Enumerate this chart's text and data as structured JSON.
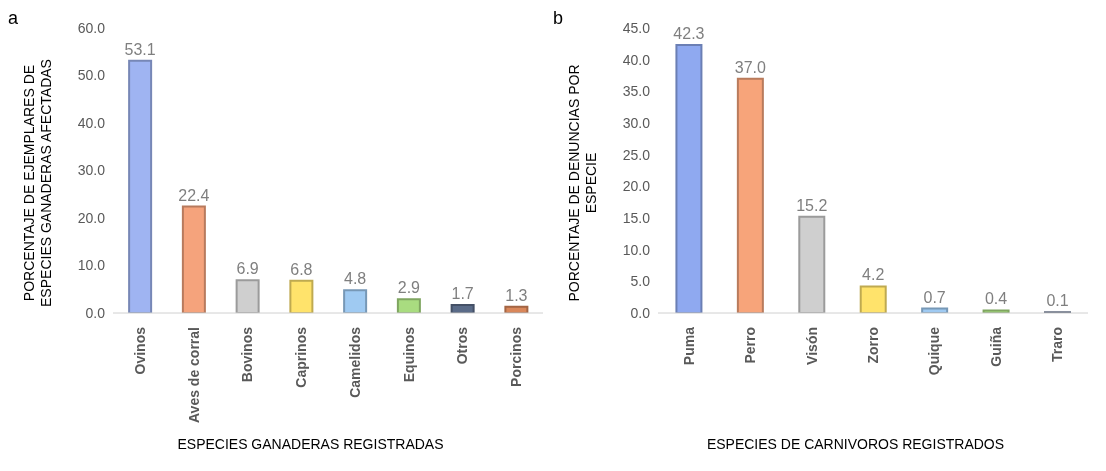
{
  "chart_data": [
    {
      "type": "bar",
      "title": "a",
      "xlabel": "ESPECIES GANADERAS REGISTRADAS",
      "ylabel": "PORCENTAJE DE EJEMPLARES DE ESPECIES GANADERAS AFECTADAS",
      "categories": [
        "Ovinos",
        "Aves de corral",
        "Bovinos",
        "Caprinos",
        "Camelidos",
        "Equinos",
        "Otros",
        "Porcinos"
      ],
      "values": [
        53.1,
        22.4,
        6.9,
        6.8,
        4.8,
        2.9,
        1.7,
        1.3
      ],
      "value_labels": [
        "53.1",
        "22.4",
        "6.9",
        "6.8",
        "4.8",
        "2.9",
        "1.7",
        "1.3"
      ],
      "colors": [
        "#9fb4f2",
        "#f5a37c",
        "#cfcfcf",
        "#ffe36b",
        "#9fcaf2",
        "#a9dc80",
        "#5a6b88",
        "#d9875a"
      ],
      "ylim": [
        0,
        60
      ],
      "yticks": [
        {
          "value": 0,
          "label": "0.0"
        },
        {
          "value": 10,
          "label": "10.0"
        },
        {
          "value": 20,
          "label": "20.0"
        },
        {
          "value": 30,
          "label": "30.0"
        },
        {
          "value": 40,
          "label": "40.0"
        },
        {
          "value": 50,
          "label": "50.0"
        },
        {
          "value": 60,
          "label": "60.0"
        }
      ],
      "grid": false,
      "legend": false
    },
    {
      "type": "bar",
      "title": "b",
      "xlabel": "ESPECIES DE CARNIVOROS REGISTRADOS",
      "ylabel": "PORCENTAJE DE DENUNCIAS POR ESPECIE",
      "categories": [
        "Puma",
        "Perro",
        "Visón",
        "Zorro",
        "Quique",
        "Guiña",
        "Traro"
      ],
      "values": [
        42.3,
        37.0,
        15.2,
        4.2,
        0.7,
        0.4,
        0.1
      ],
      "value_labels": [
        "42.3",
        "37.0",
        "15.2",
        "4.2",
        "0.7",
        "0.4",
        "0.1"
      ],
      "colors": [
        "#8fa9f0",
        "#f7a47a",
        "#cfcfcf",
        "#ffe36b",
        "#9fcaf2",
        "#a9dc80",
        "#5a6b88"
      ],
      "ylim": [
        0,
        45
      ],
      "yticks": [
        {
          "value": 0,
          "label": "0.0"
        },
        {
          "value": 5,
          "label": "5.0"
        },
        {
          "value": 10,
          "label": "10.0"
        },
        {
          "value": 15,
          "label": "15.0"
        },
        {
          "value": 20,
          "label": "20.0"
        },
        {
          "value": 25,
          "label": "25.0"
        },
        {
          "value": 30,
          "label": "30.0"
        },
        {
          "value": 35,
          "label": "35.0"
        },
        {
          "value": 40,
          "label": "40.0"
        },
        {
          "value": 45,
          "label": "45.0"
        }
      ],
      "grid": false,
      "legend": false
    }
  ]
}
